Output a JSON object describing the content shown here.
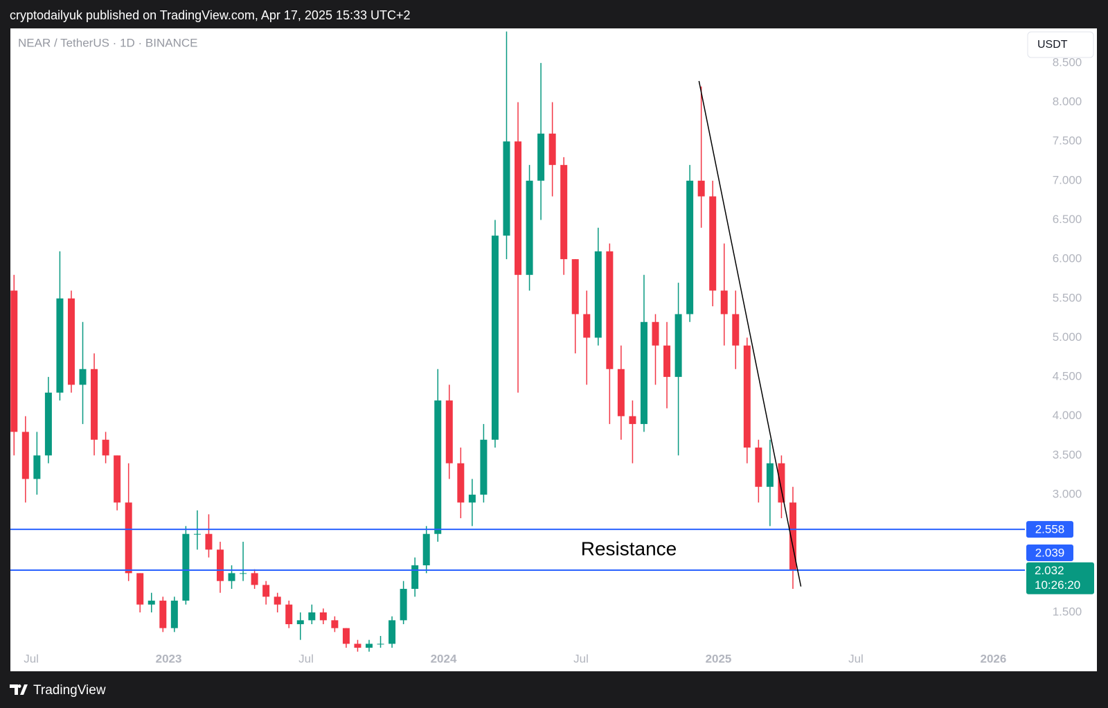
{
  "header": {
    "publisher_line": "cryptodailyuk published on TradingView.com, Apr 17, 2025 15:33 UTC+2"
  },
  "footer": {
    "brand": "TradingView"
  },
  "chart_data": {
    "type": "candlestick",
    "title": "NEAR / TetherUS · 1D · BINANCE",
    "currency": "USDT",
    "categories": [
      null,
      null,
      "Jul",
      null,
      null,
      null,
      null,
      null,
      null,
      null,
      null,
      null,
      null,
      null,
      "2023",
      null,
      null,
      null,
      null,
      null,
      null,
      null,
      null,
      null,
      null,
      null,
      "Jul",
      null,
      null,
      null,
      null,
      null,
      null,
      null,
      null,
      null,
      null,
      null,
      "2024",
      null,
      null,
      null,
      null,
      null,
      null,
      null,
      null,
      null,
      null,
      null,
      "Jul",
      null,
      null,
      null,
      null,
      null,
      null,
      null,
      null,
      null,
      null,
      null,
      "2025",
      null,
      null,
      null,
      null,
      null,
      null,
      null,
      null,
      null,
      null,
      null,
      "Jul",
      null,
      null,
      null,
      null,
      null,
      null,
      null,
      null,
      null,
      null,
      null,
      "2026",
      null,
      null,
      null,
      null,
      null,
      null,
      null,
      null
    ],
    "open": [
      5.6,
      3.8,
      3.2,
      3.5,
      4.3,
      5.5,
      4.4,
      4.6,
      3.7,
      3.5,
      2.9,
      2.0,
      1.6,
      1.65,
      1.3,
      1.65,
      2.5,
      2.5,
      2.3,
      1.9,
      2.0,
      2.0,
      1.85,
      1.7,
      1.6,
      1.35,
      1.4,
      1.5,
      1.4,
      1.3,
      1.1,
      1.05,
      1.1,
      1.1,
      1.4,
      1.8,
      2.1,
      2.5,
      4.2,
      3.4,
      2.9,
      3.0,
      3.7,
      6.3,
      7.5,
      5.8,
      7.0,
      7.6,
      7.2,
      6.0,
      5.3,
      5.0,
      6.1,
      4.6,
      4.0,
      3.9,
      5.2,
      4.9,
      4.5,
      5.3,
      7.0,
      6.8,
      5.6,
      5.3,
      4.9,
      3.6,
      3.1,
      3.4,
      2.9,
      null,
      null,
      null,
      null,
      null,
      null,
      null,
      null,
      null,
      null,
      null,
      null,
      null,
      null,
      null,
      null,
      null,
      null,
      null,
      null,
      null,
      null,
      null,
      null,
      null,
      null
    ],
    "high": [
      5.8,
      4.0,
      3.8,
      4.5,
      6.1,
      5.6,
      5.2,
      4.8,
      3.8,
      3.5,
      3.4,
      2.0,
      1.75,
      1.7,
      1.7,
      2.6,
      2.8,
      2.75,
      2.4,
      2.1,
      2.4,
      2.05,
      1.9,
      1.75,
      1.65,
      1.5,
      1.6,
      1.55,
      1.45,
      1.3,
      1.15,
      1.15,
      1.2,
      1.45,
      1.9,
      2.2,
      2.6,
      4.6,
      4.4,
      3.6,
      3.2,
      3.9,
      6.5,
      8.9,
      8.0,
      7.2,
      8.5,
      8.0,
      7.3,
      6.0,
      5.6,
      6.4,
      6.2,
      4.9,
      4.2,
      5.8,
      5.3,
      5.2,
      5.7,
      7.2,
      8.2,
      7.0,
      6.2,
      5.6,
      5.0,
      3.7,
      3.7,
      3.5,
      3.1,
      null,
      null,
      null,
      null,
      null,
      null,
      null,
      null,
      null,
      null,
      null,
      null,
      null,
      null,
      null,
      null,
      null,
      null,
      null,
      null,
      null,
      null,
      null,
      null,
      null,
      null
    ],
    "low": [
      3.5,
      2.9,
      3.0,
      3.4,
      4.2,
      4.3,
      3.9,
      3.5,
      3.4,
      2.8,
      1.9,
      1.5,
      1.5,
      1.25,
      1.25,
      1.6,
      2.3,
      2.2,
      1.75,
      1.8,
      1.9,
      1.8,
      1.6,
      1.5,
      1.3,
      1.15,
      1.35,
      1.35,
      1.25,
      1.05,
      1.0,
      1.0,
      1.05,
      1.05,
      1.35,
      1.7,
      2.0,
      2.4,
      3.2,
      2.7,
      2.6,
      2.9,
      3.6,
      6.0,
      4.3,
      5.6,
      6.5,
      6.8,
      5.8,
      4.8,
      4.4,
      4.9,
      3.9,
      3.7,
      3.4,
      3.8,
      4.4,
      4.1,
      3.5,
      5.2,
      6.4,
      5.4,
      4.9,
      4.6,
      3.4,
      2.9,
      2.6,
      2.7,
      1.8,
      null,
      null,
      null,
      null,
      null,
      null,
      null,
      null,
      null,
      null,
      null,
      null,
      null,
      null,
      null,
      null,
      null,
      null,
      null,
      null,
      null,
      null,
      null,
      null,
      null,
      null
    ],
    "close": [
      3.8,
      3.2,
      3.5,
      4.3,
      5.5,
      4.4,
      4.6,
      3.7,
      3.5,
      2.9,
      2.0,
      1.6,
      1.65,
      1.3,
      1.65,
      2.5,
      2.5,
      2.3,
      1.9,
      2.0,
      2.0,
      1.85,
      1.7,
      1.6,
      1.35,
      1.4,
      1.5,
      1.4,
      1.3,
      1.1,
      1.05,
      1.1,
      1.1,
      1.4,
      1.8,
      2.1,
      2.5,
      4.2,
      3.4,
      2.9,
      3.0,
      3.7,
      6.3,
      7.5,
      5.8,
      7.0,
      7.6,
      7.2,
      6.0,
      5.3,
      5.0,
      6.1,
      4.6,
      4.0,
      3.9,
      5.2,
      4.9,
      4.5,
      5.3,
      7.0,
      6.8,
      5.6,
      5.3,
      4.9,
      3.6,
      3.1,
      3.4,
      2.9,
      2.032,
      null,
      null,
      null,
      null,
      null,
      null,
      null,
      null,
      null,
      null,
      null,
      null,
      null,
      null,
      null,
      null,
      null,
      null,
      null,
      null,
      null,
      null,
      null,
      null,
      null,
      null
    ],
    "up_color": "#089981",
    "down_color": "#f23645",
    "ylim": [
      0.75,
      8.94
    ],
    "yticks": [
      {
        "value": 1.5,
        "label": "1.500"
      },
      {
        "value": 3.0,
        "label": "3.000"
      },
      {
        "value": 3.5,
        "label": "3.500"
      },
      {
        "value": 4.0,
        "label": "4.000"
      },
      {
        "value": 4.5,
        "label": "4.500"
      },
      {
        "value": 5.0,
        "label": "5.000"
      },
      {
        "value": 5.5,
        "label": "5.500"
      },
      {
        "value": 6.0,
        "label": "6.000"
      },
      {
        "value": 6.5,
        "label": "6.500"
      },
      {
        "value": 7.0,
        "label": "7.000"
      },
      {
        "value": 7.5,
        "label": "7.500"
      },
      {
        "value": 8.0,
        "label": "8.000"
      },
      {
        "value": 8.5,
        "label": "8.500"
      }
    ],
    "hlines": [
      2.558,
      2.039
    ],
    "hline_color": "#2962ff",
    "last_price": 2.032,
    "countdown": "10:26:20",
    "annotation": "Resistance",
    "trendline": {
      "x": [
        60.3,
        69.2
      ],
      "values": [
        8.27,
        1.83
      ],
      "color": "#000000"
    }
  }
}
